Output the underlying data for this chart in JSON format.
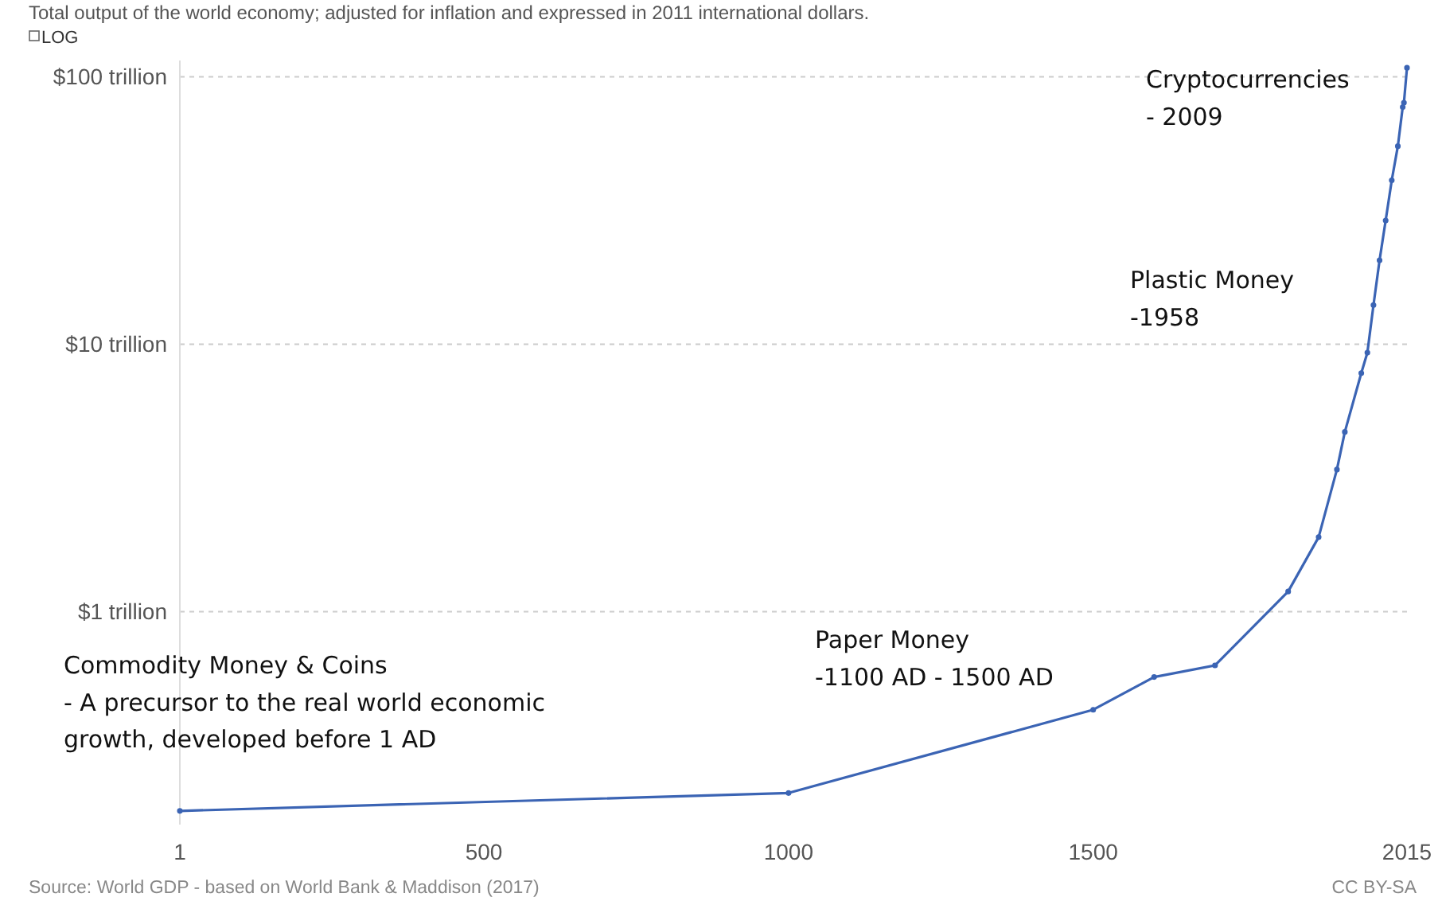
{
  "chart_data": {
    "type": "line",
    "subtitle": "Total output of the world economy; adjusted for inflation and expressed in 2011 international dollars.",
    "x": [
      1,
      1000,
      1500,
      1600,
      1700,
      1820,
      1870,
      1900,
      1913,
      1940,
      1950,
      1960,
      1970,
      1980,
      1990,
      2000,
      2008,
      2010,
      2015
    ],
    "series": [
      {
        "color": "#3b64b4",
        "values": [
          0.18,
          0.21,
          0.43,
          0.57,
          0.63,
          1.19,
          1.9,
          3.4,
          4.7,
          7.8,
          9.3,
          14,
          20.6,
          29,
          41,
          55,
          77,
          80,
          108
        ]
      }
    ],
    "xlim": [
      1,
      2015
    ],
    "xticks": [
      1,
      500,
      1000,
      1500,
      2015
    ],
    "ylim": [
      0.16,
      115
    ],
    "yticks": [
      {
        "value": 1,
        "label": "$1 trillion"
      },
      {
        "value": 10,
        "label": "$10 trillion"
      },
      {
        "value": 100,
        "label": "$100 trillion"
      }
    ],
    "log": "y",
    "grid": "y",
    "marker": "circle",
    "line_style": "solid",
    "annotations": [
      "LOG",
      "Commodity Money & Coins\n- A precursor to the real world economic\ngrowth, developed before 1 AD",
      "Paper Money\n-1100 AD - 1500 AD",
      "Plastic Money\n-1958",
      "Cryptocurrencies\n- 2009",
      "Source: World GDP - based on World Bank & Maddison (2017)",
      "CC BY-SA"
    ]
  }
}
